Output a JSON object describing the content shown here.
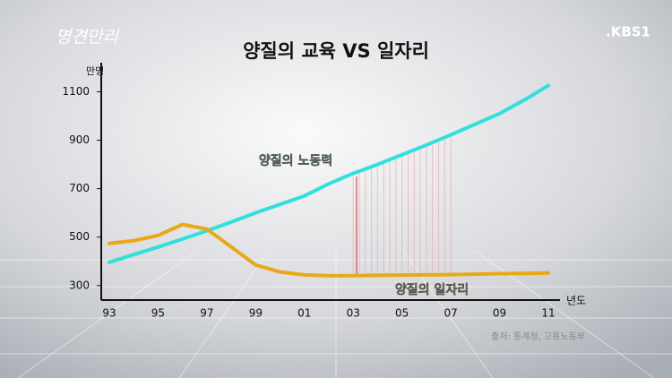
{
  "logo": "명견만리",
  "channel": ".KBS1",
  "source": "출처: 통계청, 고용노동부",
  "chart_data": {
    "type": "line",
    "title": "양질의 교육 VS 일자리",
    "ylabel": "만명",
    "xlabel": "년도",
    "categories": [
      "93",
      null,
      "95",
      null,
      "97",
      null,
      "99",
      null,
      "01",
      null,
      "03",
      null,
      "05",
      null,
      "07",
      null,
      "09",
      null,
      "11"
    ],
    "series": [
      {
        "name": "양질의 노동력",
        "color": "#2fe0dc",
        "values": [
          396,
          428,
          459,
          492,
          526,
          562,
          600,
          635,
          670,
          720,
          763,
          800,
          840,
          880,
          922,
          966,
          1010,
          1065,
          1126
        ]
      },
      {
        "name": "양질의 일자리",
        "color": "#e8a917",
        "values": [
          474,
          485,
          507,
          552,
          533,
          459,
          385,
          356,
          344,
          341,
          341,
          342,
          343,
          344,
          345,
          347,
          349,
          350,
          352
        ]
      }
    ],
    "ylim": [
      240,
      1220
    ],
    "yticks": [
      300,
      500,
      700,
      900,
      1100
    ]
  }
}
